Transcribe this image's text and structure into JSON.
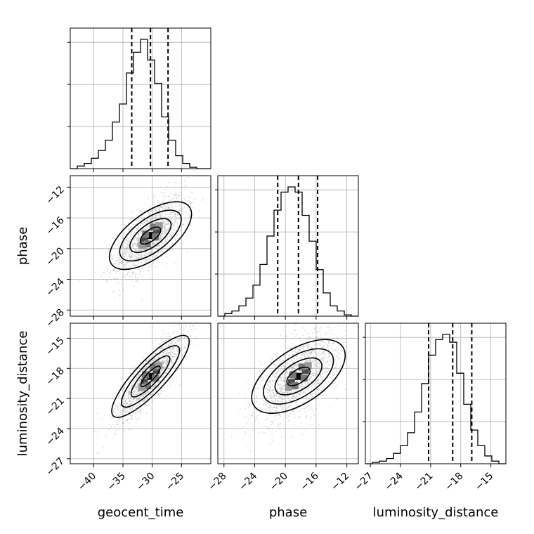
{
  "chart_data": {
    "type": "corner",
    "parameters": [
      "geocent_time",
      "phase",
      "luminosity_distance"
    ],
    "axis_labels": {
      "x": [
        "geocent_time",
        "phase",
        "luminosity_distance"
      ],
      "y": [
        "",
        "phase",
        "luminosity_distance"
      ]
    },
    "ranges": {
      "geocent_time": [
        -44,
        -20
      ],
      "phase": [
        -28.8,
        -10.5
      ],
      "luminosity_distance": [
        -27.5,
        -13.5
      ]
    },
    "ticks": {
      "geocent_time": [
        -40,
        -35,
        -30,
        -25
      ],
      "phase": [
        -28,
        -24,
        -20,
        -16,
        -12
      ],
      "luminosity_distance": [
        -27,
        -24,
        -21,
        -18,
        -15
      ]
    },
    "tick_labels": {
      "geocent_time": [
        "−40",
        "−35",
        "−30",
        "−25"
      ],
      "phase": [
        "−28",
        "−24",
        "−20",
        "−16",
        "−12"
      ],
      "luminosity_distance": [
        "−27",
        "−24",
        "−21",
        "−18",
        "−15"
      ]
    },
    "histograms": {
      "geocent_time": {
        "edges_start": -44,
        "bin_width": 1.2,
        "counts": [
          0,
          2,
          4,
          8,
          14,
          22,
          36,
          50,
          74,
          90,
          100,
          84,
          66,
          40,
          22,
          10,
          4,
          1,
          0,
          0
        ]
      },
      "phase": {
        "edges_start": -28.8,
        "bin_width": 0.915,
        "counts": [
          0,
          2,
          4,
          8,
          14,
          24,
          40,
          62,
          82,
          96,
          100,
          96,
          78,
          58,
          36,
          18,
          8,
          4,
          1,
          0
        ]
      },
      "luminosity_distance": {
        "edges_start": -27.5,
        "bin_width": 0.7,
        "counts": [
          0,
          1,
          2,
          4,
          8,
          14,
          24,
          40,
          62,
          84,
          96,
          100,
          94,
          70,
          46,
          26,
          14,
          6,
          2,
          0
        ]
      }
    },
    "quantiles": {
      "geocent_time": [
        -33.5,
        -30.3,
        -27.3
      ],
      "phase": [
        -21.0,
        -18.3,
        -15.8
      ],
      "luminosity_distance": [
        -21.2,
        -18.8,
        -16.9
      ]
    },
    "grid": true
  }
}
